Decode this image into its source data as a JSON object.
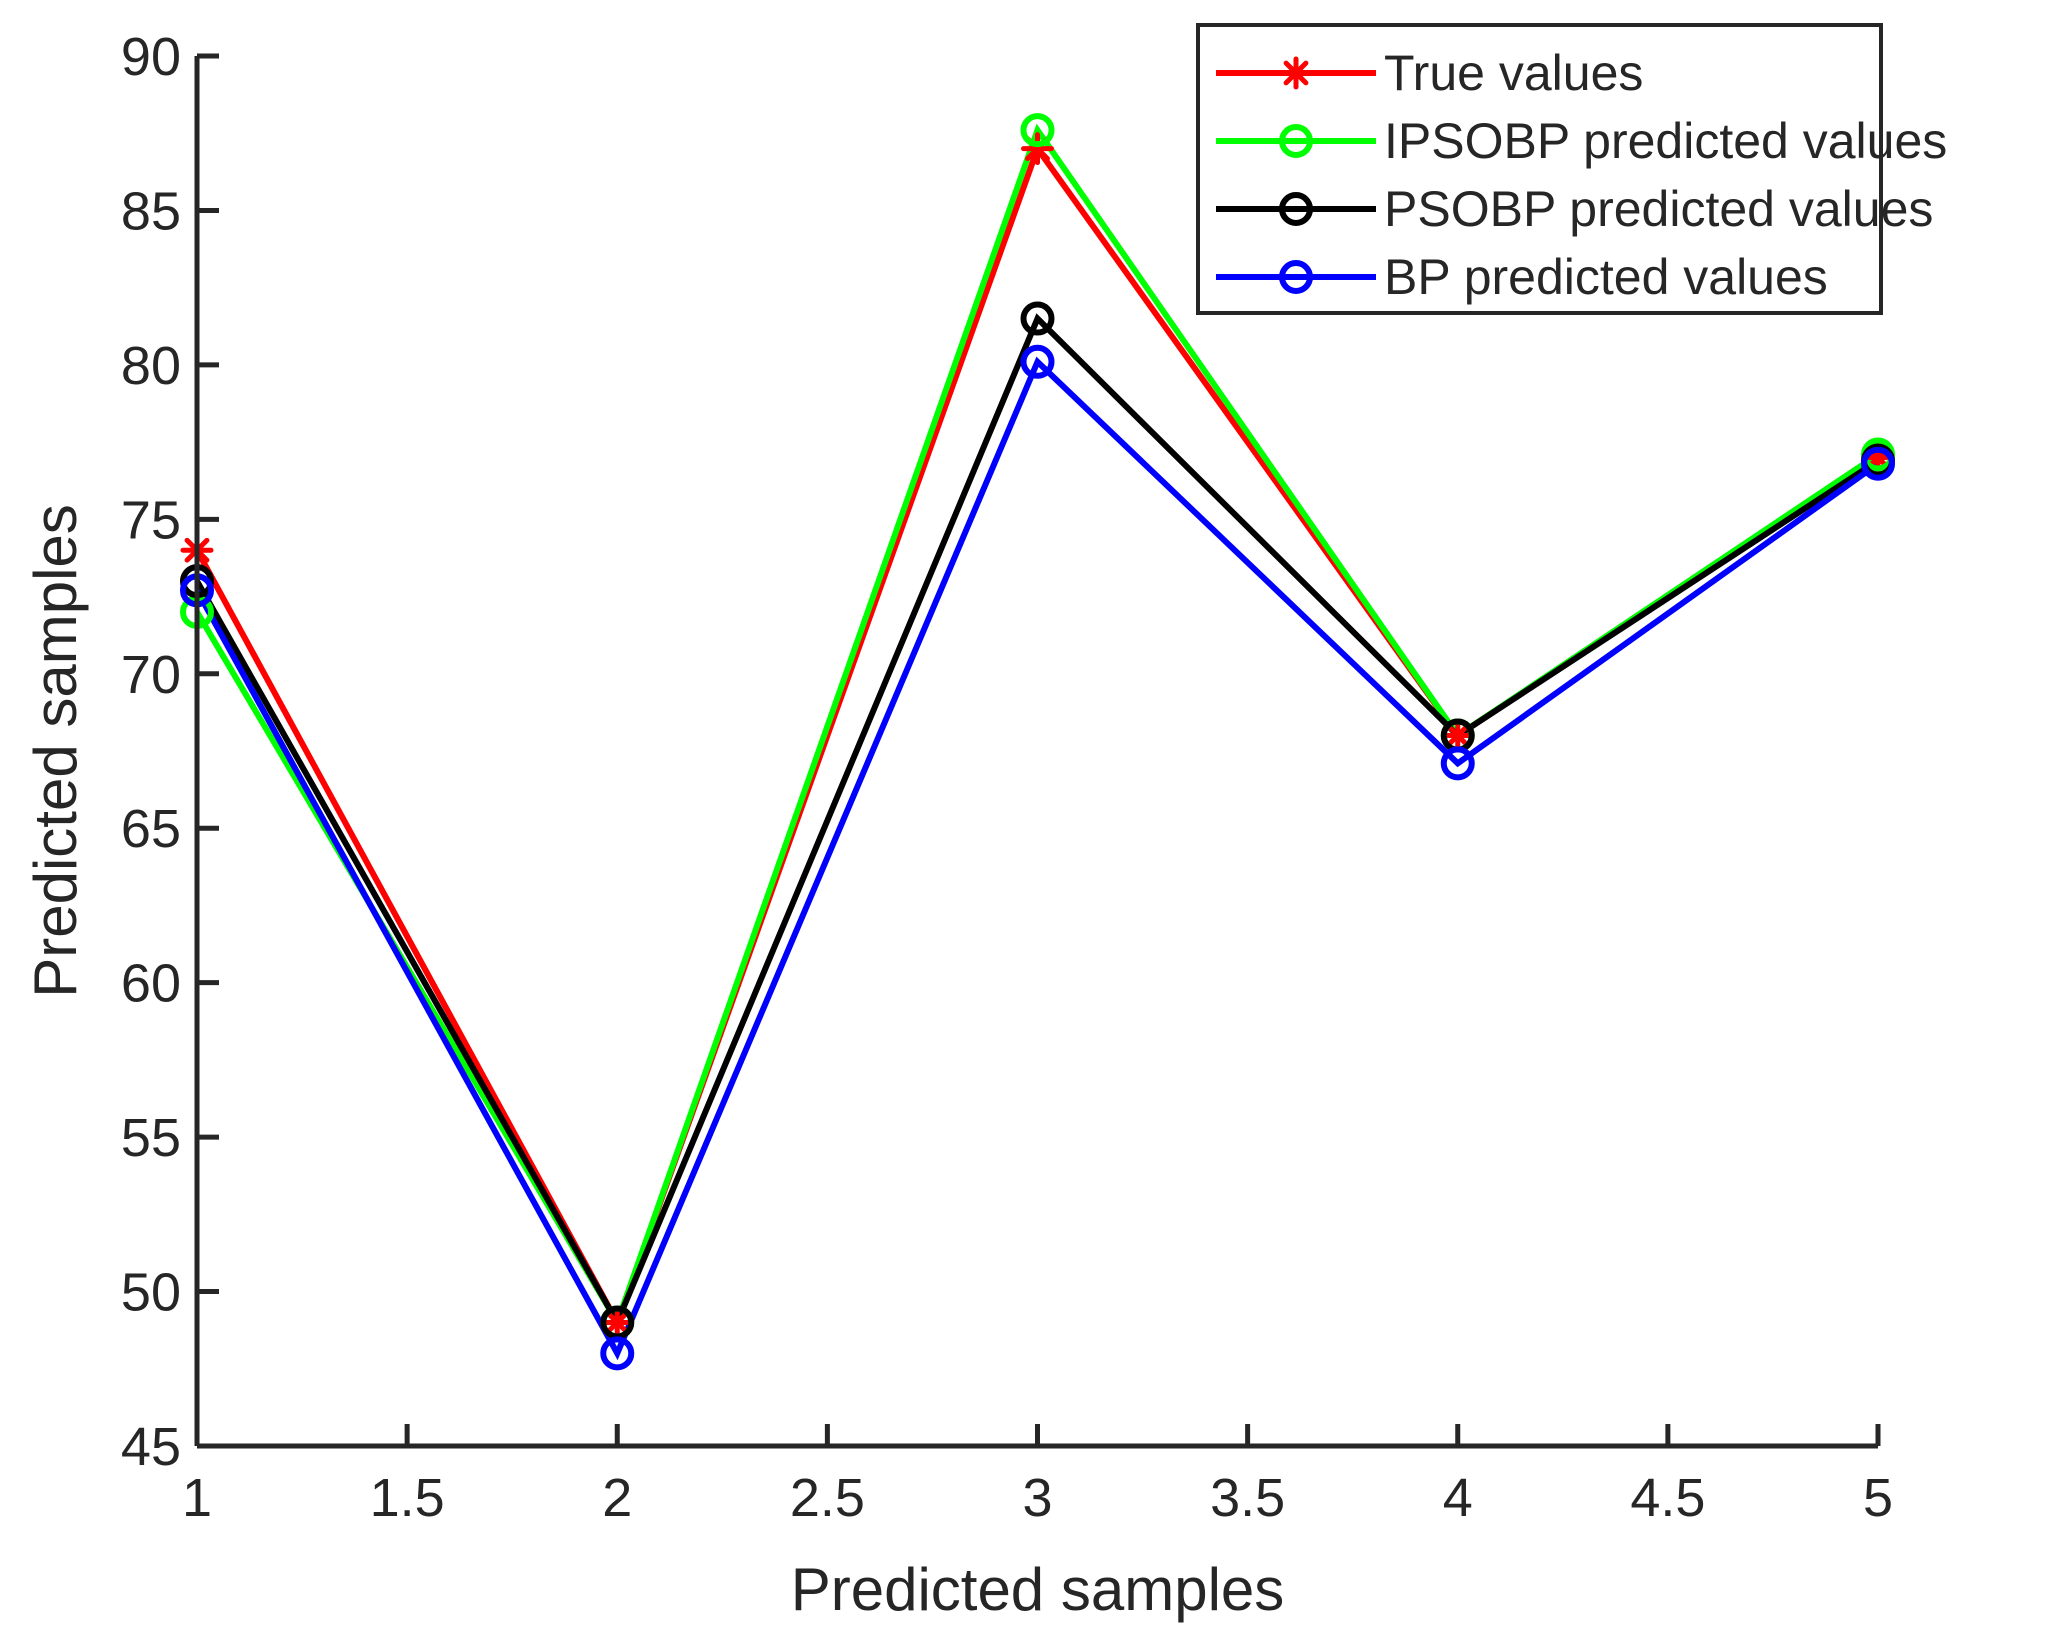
{
  "chart_data": {
    "type": "line",
    "title": "",
    "xlabel": "Predicted samples",
    "ylabel": "Predicted samples",
    "xlim": [
      1,
      5
    ],
    "ylim": [
      45,
      90
    ],
    "x": [
      1,
      2,
      3,
      4,
      5
    ],
    "xticks": [
      1,
      1.5,
      2,
      2.5,
      3,
      3.5,
      4,
      4.5,
      5
    ],
    "xtick_labels": [
      "1",
      "1.5",
      "2",
      "2.5",
      "3",
      "3.5",
      "4",
      "4.5",
      "5"
    ],
    "yticks": [
      45,
      50,
      55,
      60,
      65,
      70,
      75,
      80,
      85,
      90
    ],
    "ytick_labels": [
      "45",
      "50",
      "55",
      "60",
      "65",
      "70",
      "75",
      "80",
      "85",
      "90"
    ],
    "grid": false,
    "legend_position": "top-right",
    "series": [
      {
        "name": "True values",
        "marker": "star",
        "color": "#ff0000",
        "values": [
          74,
          49,
          87,
          68,
          77
        ]
      },
      {
        "name": "IPSOBP predicted values",
        "marker": "circle",
        "color": "#00ff00",
        "values": [
          72,
          49,
          87.6,
          68,
          77.1
        ]
      },
      {
        "name": "PSOBP predicted values",
        "marker": "circle",
        "color": "#000000",
        "values": [
          73,
          49,
          81.5,
          68,
          76.9
        ]
      },
      {
        "name": "BP predicted values",
        "marker": "circle",
        "color": "#0000ff",
        "values": [
          72.7,
          48,
          80.1,
          67.1,
          76.8
        ]
      }
    ]
  }
}
